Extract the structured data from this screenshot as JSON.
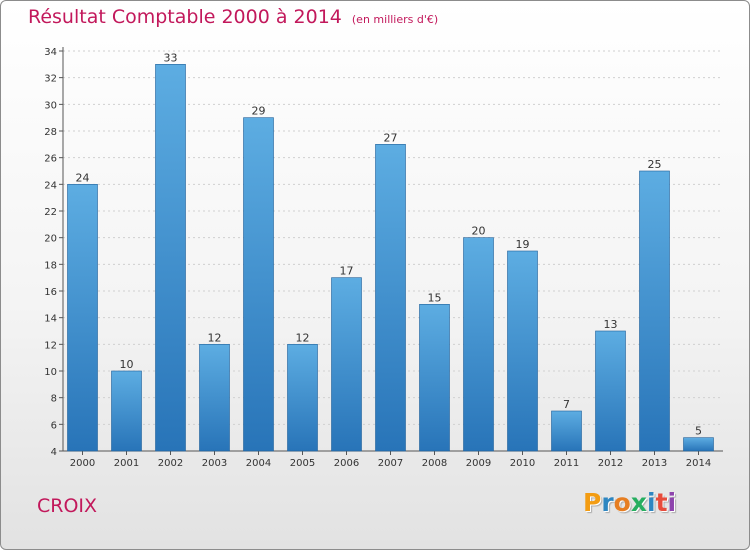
{
  "header": {
    "title": "Résultat Comptable 2000 à 2014",
    "subtitle": "(en milliers d'€)"
  },
  "footer": {
    "commune": "CROIX",
    "logo_letters": [
      "P",
      "r",
      "o",
      "x",
      "i",
      "t",
      "i"
    ],
    "logo_colors": [
      "#f39c12",
      "#2e86c1",
      "#e67e22",
      "#27ae60",
      "#2e86c1",
      "#e74c3c",
      "#8e44ad"
    ]
  },
  "colors": {
    "bar_top": "#5dade2",
    "bar_bottom": "#2874b8",
    "grid": "#d0d0d0",
    "accent": "#c2185b"
  },
  "chart_data": {
    "type": "bar",
    "title": "Résultat Comptable 2000 à 2014",
    "subtitle": "(en milliers d'€)",
    "categories": [
      "2000",
      "2001",
      "2002",
      "2003",
      "2004",
      "2005",
      "2006",
      "2007",
      "2008",
      "2009",
      "2010",
      "2011",
      "2012",
      "2013",
      "2014"
    ],
    "values": [
      24,
      10,
      33,
      12,
      29,
      12,
      17,
      27,
      15,
      20,
      19,
      7,
      13,
      25,
      5
    ],
    "ylim": [
      4,
      34
    ],
    "yticks": [
      4,
      6,
      8,
      10,
      12,
      14,
      16,
      18,
      20,
      22,
      24,
      26,
      28,
      30,
      32,
      34
    ],
    "grid": true,
    "legend": "none"
  }
}
